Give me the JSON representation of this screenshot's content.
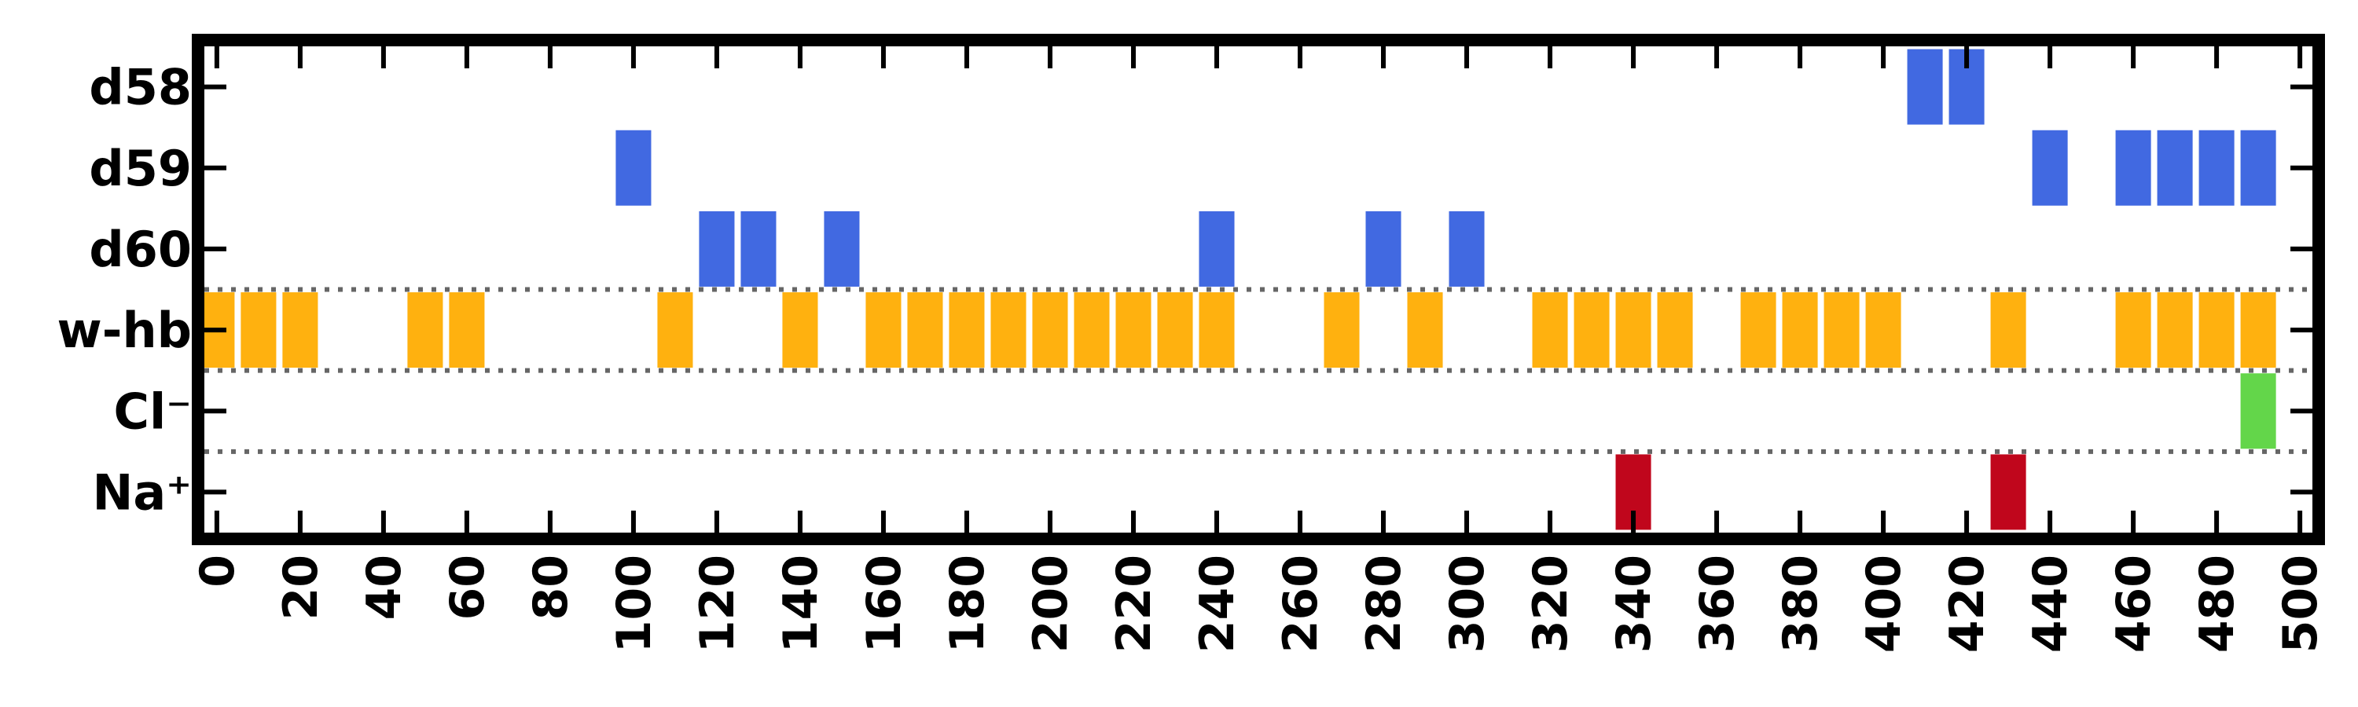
{
  "chart_data": {
    "type": "event-raster",
    "title": "",
    "xlabel": "",
    "ylabel": "",
    "xlim": [
      -3,
      503
    ],
    "x_ticks": [
      0,
      20,
      40,
      60,
      80,
      100,
      120,
      140,
      160,
      180,
      200,
      220,
      240,
      260,
      280,
      300,
      320,
      340,
      360,
      380,
      400,
      420,
      440,
      460,
      480,
      500
    ],
    "x_tick_labels": [
      "0",
      "20",
      "40",
      "60",
      "80",
      "100",
      "120",
      "140",
      "160",
      "180",
      "200",
      "220",
      "240",
      "260",
      "280",
      "300",
      "320",
      "340",
      "360",
      "380",
      "400",
      "420",
      "440",
      "460",
      "480",
      "500"
    ],
    "event_width": 8.5,
    "rows": [
      {
        "label": "d58",
        "color": "#4169e1",
        "events": [
          410,
          420
        ]
      },
      {
        "label": "d59",
        "color": "#4169e1",
        "events": [
          100,
          440,
          460,
          470,
          480,
          490
        ]
      },
      {
        "label": "d60",
        "color": "#4169e1",
        "events": [
          120,
          130,
          150,
          240,
          280,
          300
        ]
      },
      {
        "label": "w-hb",
        "color": "#ffb10f",
        "events": [
          0,
          10,
          20,
          50,
          60,
          110,
          140,
          160,
          170,
          180,
          190,
          200,
          210,
          220,
          230,
          240,
          270,
          290,
          320,
          330,
          340,
          350,
          370,
          380,
          390,
          400,
          430,
          460,
          470,
          480,
          490
        ]
      },
      {
        "label": "Cl⁻",
        "color": "#63d64a",
        "events": [
          490
        ]
      },
      {
        "label": "Na⁺",
        "color": "#c0061c",
        "events": [
          340,
          430
        ]
      }
    ],
    "separators_after_rows": [
      3,
      4,
      5
    ],
    "grid": false,
    "legend": "none"
  }
}
